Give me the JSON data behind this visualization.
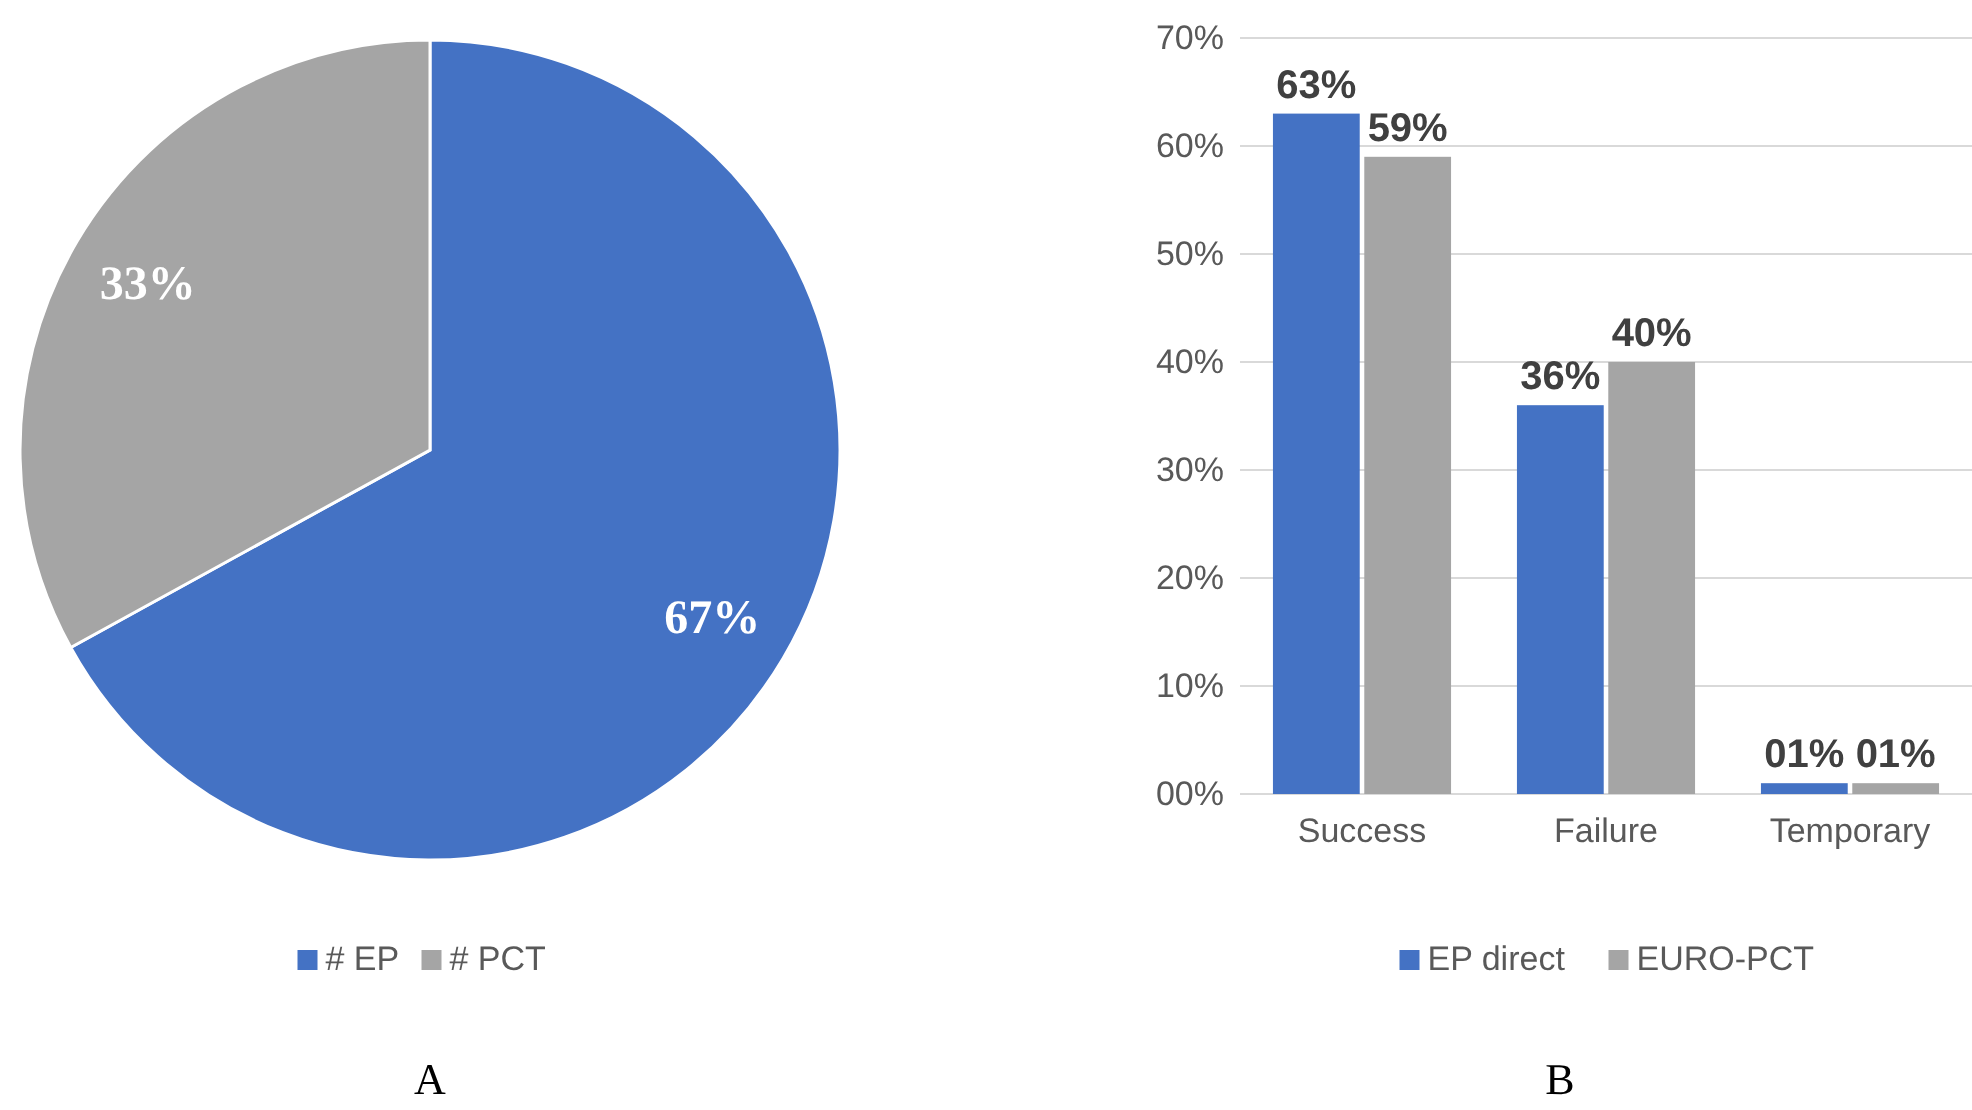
{
  "chart_data": [
    {
      "type": "pie",
      "categories": [
        "# EP",
        "# PCT"
      ],
      "values": [
        67,
        33
      ],
      "colors": [
        "#4472c4",
        "#a5a5a5"
      ],
      "value_labels": [
        "67%",
        "33%"
      ],
      "legend": "bottom",
      "annotations": [
        "A"
      ]
    },
    {
      "type": "bar",
      "categories": [
        "Success",
        "Failure",
        "Temporary"
      ],
      "series": [
        {
          "name": "EP direct",
          "color": "#4472c4",
          "values": [
            63,
            36,
            1
          ],
          "value_labels": [
            "63%",
            "36%",
            "01%"
          ]
        },
        {
          "name": "EURO-PCT",
          "color": "#a5a5a5",
          "values": [
            59,
            40,
            1
          ],
          "value_labels": [
            "59%",
            "40%",
            "01%"
          ]
        }
      ],
      "ylim": [
        0,
        70
      ],
      "yticks": [
        {
          "value": 0,
          "label": "00%"
        },
        {
          "value": 10,
          "label": "10%"
        },
        {
          "value": 20,
          "label": "20%"
        },
        {
          "value": 30,
          "label": "30%"
        },
        {
          "value": 40,
          "label": "40%"
        },
        {
          "value": 50,
          "label": "50%"
        },
        {
          "value": 60,
          "label": "60%"
        },
        {
          "value": 70,
          "label": "70%"
        }
      ],
      "grid": "y",
      "legend": "bottom",
      "annotations": [
        "B"
      ]
    }
  ]
}
